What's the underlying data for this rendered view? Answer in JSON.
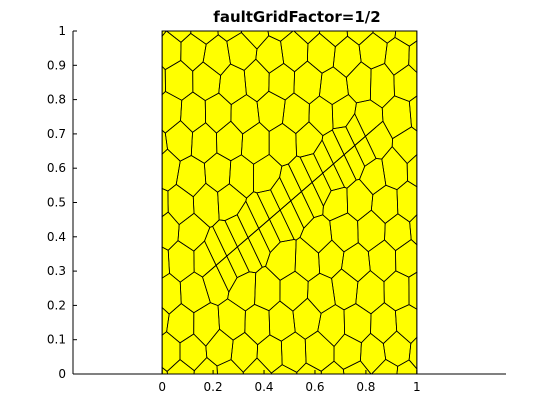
{
  "figure": {
    "title": "faultGridFactor=1/2"
  },
  "chart_data": {
    "type": "mesh",
    "title": "faultGridFactor=1/2",
    "xlabel": "",
    "ylabel": "",
    "xlim": [
      -0.35,
      1.35
    ],
    "ylim": [
      0,
      1
    ],
    "x_ticks": [
      0,
      0.2,
      0.4,
      0.6,
      0.8,
      1
    ],
    "x_tick_labels": [
      "0",
      "0.2",
      "0.4",
      "0.6",
      "0.8",
      "1"
    ],
    "y_ticks": [
      0,
      0.1,
      0.2,
      0.3,
      0.4,
      0.5,
      0.6,
      0.7,
      0.8,
      0.9,
      1
    ],
    "y_tick_labels": [
      "0",
      "0.1",
      "0.2",
      "0.3",
      "0.4",
      "0.5",
      "0.6",
      "0.7",
      "0.8",
      "0.9",
      "1"
    ],
    "domain": {
      "x": [
        0,
        1
      ],
      "y": [
        0,
        1
      ]
    },
    "cell_fill": "#ffff00",
    "edge_color": "#000000",
    "fault": {
      "start": [
        0.17,
        0.29
      ],
      "end": [
        0.84,
        0.72
      ],
      "cells_along_fault": 16
    },
    "approx_cell_size": 0.1,
    "grid": false,
    "box": false
  }
}
